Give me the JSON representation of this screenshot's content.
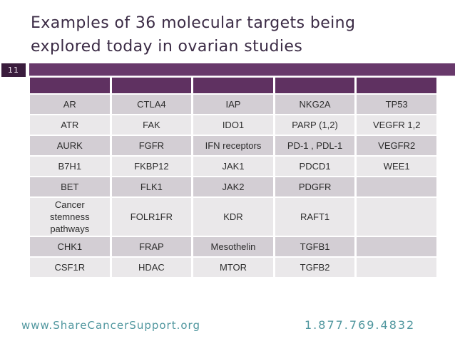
{
  "slide": {
    "number": "11",
    "title_line1": "Examples of 36 molecular targets being",
    "title_line2": "explored today in ovarian studies"
  },
  "table": {
    "header": [
      "",
      "",
      "",
      "",
      ""
    ],
    "rows": [
      [
        "AR",
        "CTLA4",
        "IAP",
        "NKG2A",
        "TP53"
      ],
      [
        "ATR",
        "FAK",
        "IDO1",
        "PARP (1,2)",
        "VEGFR 1,2"
      ],
      [
        "AURK",
        "FGFR",
        "IFN receptors",
        "PD-1 , PDL-1",
        "VEGFR2"
      ],
      [
        "B7H1",
        "FKBP12",
        "JAK1",
        "PDCD1",
        "WEE1"
      ],
      [
        "BET",
        "FLK1",
        "JAK2",
        "PDGFR",
        ""
      ],
      [
        "Cancer stemness pathways",
        "FOLR1FR",
        "KDR",
        "RAFT1",
        ""
      ],
      [
        "CHK1",
        "FRAP",
        "Mesothelin",
        "TGFB1",
        ""
      ],
      [
        "CSF1R",
        "HDAC",
        "MTOR",
        "TGFB2",
        ""
      ]
    ]
  },
  "footer": {
    "website": "www.ShareCancerSupport.org",
    "phone": "1.877.769.4832"
  },
  "colors": {
    "title_text": "#3b2b45",
    "accent_bar": "#68396b",
    "slide_number_bg": "#3a1c3d",
    "table_header_bg": "#5f3161",
    "row_dark": "#d3ced4",
    "row_light": "#eae8ea",
    "cell_text": "#2d2d2d",
    "footer_teal": "#4f969e"
  }
}
